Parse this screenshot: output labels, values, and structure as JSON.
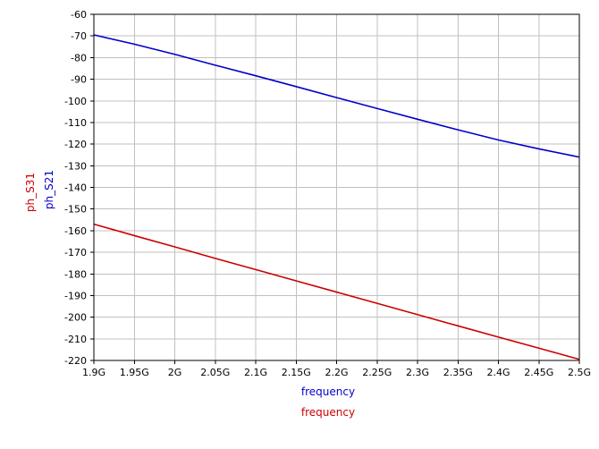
{
  "chart_data": {
    "type": "line",
    "title": "",
    "xlabels": [
      {
        "text": "frequency",
        "color": "#0000cc"
      },
      {
        "text": "frequency",
        "color": "#cc0000"
      }
    ],
    "ylabels": [
      {
        "text": "ph_S31",
        "color": "#cc0000"
      },
      {
        "text": "ph_S21",
        "color": "#0000cc"
      }
    ],
    "xlim": [
      1.9,
      2.5
    ],
    "ylim": [
      -220,
      -60
    ],
    "x_ticks": [
      {
        "value": 1.9,
        "label": "1.9G"
      },
      {
        "value": 1.95,
        "label": "1.95G"
      },
      {
        "value": 2.0,
        "label": "2G"
      },
      {
        "value": 2.05,
        "label": "2.05G"
      },
      {
        "value": 2.1,
        "label": "2.1G"
      },
      {
        "value": 2.15,
        "label": "2.15G"
      },
      {
        "value": 2.2,
        "label": "2.2G"
      },
      {
        "value": 2.25,
        "label": "2.25G"
      },
      {
        "value": 2.3,
        "label": "2.3G"
      },
      {
        "value": 2.35,
        "label": "2.35G"
      },
      {
        "value": 2.4,
        "label": "2.4G"
      },
      {
        "value": 2.45,
        "label": "2.45G"
      },
      {
        "value": 2.5,
        "label": "2.5G"
      }
    ],
    "y_ticks": [
      {
        "value": -60,
        "label": "-60"
      },
      {
        "value": -70,
        "label": "-70"
      },
      {
        "value": -80,
        "label": "-80"
      },
      {
        "value": -90,
        "label": "-90"
      },
      {
        "value": -100,
        "label": "-100"
      },
      {
        "value": -110,
        "label": "-110"
      },
      {
        "value": -120,
        "label": "-120"
      },
      {
        "value": -130,
        "label": "-130"
      },
      {
        "value": -140,
        "label": "-140"
      },
      {
        "value": -150,
        "label": "-150"
      },
      {
        "value": -160,
        "label": "-160"
      },
      {
        "value": -170,
        "label": "-170"
      },
      {
        "value": -180,
        "label": "-180"
      },
      {
        "value": -190,
        "label": "-190"
      },
      {
        "value": -200,
        "label": "-200"
      },
      {
        "value": -210,
        "label": "-210"
      },
      {
        "value": -220,
        "label": "-220"
      }
    ],
    "grid": true,
    "series": [
      {
        "name": "ph_S21",
        "color": "#0000cc",
        "x": [
          1.9,
          1.95,
          2.0,
          2.05,
          2.1,
          2.15,
          2.2,
          2.25,
          2.3,
          2.35,
          2.4,
          2.45,
          2.5
        ],
        "values": [
          -69.5,
          -73.8,
          -78.5,
          -83.5,
          -88.4,
          -93.4,
          -98.5,
          -103.5,
          -108.5,
          -113.4,
          -118.1,
          -122.2,
          -126.0
        ]
      },
      {
        "name": "ph_S31",
        "color": "#cc0000",
        "x": [
          1.9,
          1.95,
          2.0,
          2.05,
          2.1,
          2.15,
          2.2,
          2.25,
          2.3,
          2.35,
          2.4,
          2.45,
          2.5
        ],
        "values": [
          -157.0,
          -162.3,
          -167.5,
          -172.8,
          -178.0,
          -183.2,
          -188.4,
          -193.6,
          -198.8,
          -204.0,
          -209.2,
          -214.3,
          -219.5
        ]
      }
    ]
  }
}
